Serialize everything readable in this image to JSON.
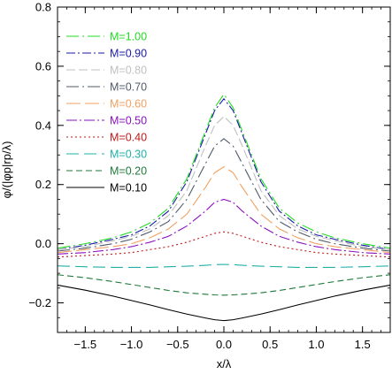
{
  "chart_data": {
    "type": "line",
    "xlabel": "x/λ",
    "ylabel": "φ/(|φp|rp/λ)",
    "xlim": [
      -1.8,
      1.8
    ],
    "ylim": [
      -0.3,
      0.8
    ],
    "xticks": [
      -1.5,
      -1.0,
      -0.5,
      0.0,
      0.5,
      1.0,
      1.5
    ],
    "xtick_labels": [
      "−1.5",
      "−1.0",
      "−0.5",
      "0.0",
      "0.5",
      "1.0",
      "1.5"
    ],
    "yticks": [
      -0.2,
      0.0,
      0.2,
      0.4,
      0.6,
      0.8
    ],
    "ytick_labels": [
      "−0.2",
      "0.0",
      "0.2",
      "0.4",
      "0.6",
      "0.8"
    ],
    "grid": false,
    "legend_position": "top-left",
    "series": [
      {
        "name": "M=1.00",
        "color": "#22dd22",
        "dash": "14,4,2,4",
        "x": [
          -1.8,
          -1.5,
          -1.2,
          -1.0,
          -0.8,
          -0.6,
          -0.4,
          -0.2,
          -0.1,
          0.0,
          0.1,
          0.2,
          0.4,
          0.6,
          0.8,
          1.0,
          1.2,
          1.5,
          1.8
        ],
        "y": [
          -0.015,
          0.0,
          0.02,
          0.04,
          0.07,
          0.12,
          0.22,
          0.38,
          0.46,
          0.505,
          0.46,
          0.38,
          0.22,
          0.12,
          0.07,
          0.04,
          0.02,
          0.0,
          -0.015
        ]
      },
      {
        "name": "M=0.90",
        "color": "#1a1aa8",
        "dash": "10,3,2,3",
        "x": [
          -1.8,
          -1.5,
          -1.2,
          -1.0,
          -0.8,
          -0.6,
          -0.4,
          -0.2,
          -0.1,
          0.0,
          0.1,
          0.2,
          0.4,
          0.6,
          0.8,
          1.0,
          1.2,
          1.5,
          1.8
        ],
        "y": [
          -0.02,
          -0.005,
          0.015,
          0.03,
          0.06,
          0.11,
          0.21,
          0.37,
          0.45,
          0.49,
          0.45,
          0.37,
          0.21,
          0.11,
          0.06,
          0.03,
          0.015,
          -0.005,
          -0.02
        ]
      },
      {
        "name": "M=0.80",
        "color": "#c0c0c0",
        "dash": "10,4",
        "x": [
          -1.8,
          -1.5,
          -1.2,
          -1.0,
          -0.8,
          -0.6,
          -0.4,
          -0.2,
          -0.1,
          0.0,
          0.1,
          0.2,
          0.4,
          0.6,
          0.8,
          1.0,
          1.2,
          1.5,
          1.8
        ],
        "y": [
          -0.02,
          -0.01,
          0.01,
          0.025,
          0.05,
          0.095,
          0.18,
          0.33,
          0.4,
          0.43,
          0.4,
          0.33,
          0.18,
          0.095,
          0.05,
          0.025,
          0.01,
          -0.01,
          -0.02
        ]
      },
      {
        "name": "M=0.70",
        "color": "#505a6a",
        "dash": "14,4,2,4",
        "x": [
          -1.8,
          -1.5,
          -1.2,
          -1.0,
          -0.8,
          -0.6,
          -0.4,
          -0.2,
          -0.1,
          0.0,
          0.1,
          0.2,
          0.4,
          0.6,
          0.8,
          1.0,
          1.2,
          1.5,
          1.8
        ],
        "y": [
          -0.025,
          -0.015,
          0.0,
          0.015,
          0.04,
          0.075,
          0.15,
          0.27,
          0.33,
          0.355,
          0.33,
          0.27,
          0.15,
          0.075,
          0.04,
          0.015,
          0.0,
          -0.015,
          -0.025
        ]
      },
      {
        "name": "M=0.60",
        "color": "#f0a060",
        "dash": "16,5",
        "x": [
          -1.8,
          -1.5,
          -1.2,
          -1.0,
          -0.8,
          -0.6,
          -0.4,
          -0.2,
          -0.1,
          0.0,
          0.1,
          0.2,
          0.4,
          0.6,
          0.8,
          1.0,
          1.2,
          1.5,
          1.8
        ],
        "y": [
          -0.03,
          -0.02,
          -0.01,
          0.0,
          0.02,
          0.05,
          0.1,
          0.19,
          0.24,
          0.26,
          0.24,
          0.19,
          0.1,
          0.05,
          0.02,
          0.0,
          -0.01,
          -0.02,
          -0.03
        ]
      },
      {
        "name": "M=0.50",
        "color": "#8a10c0",
        "dash": "12,3,2,3",
        "x": [
          -1.8,
          -1.5,
          -1.2,
          -1.0,
          -0.8,
          -0.6,
          -0.4,
          -0.2,
          -0.1,
          0.0,
          0.1,
          0.2,
          0.4,
          0.6,
          0.8,
          1.0,
          1.2,
          1.5,
          1.8
        ],
        "y": [
          -0.035,
          -0.03,
          -0.02,
          -0.01,
          0.005,
          0.025,
          0.06,
          0.11,
          0.14,
          0.15,
          0.14,
          0.11,
          0.06,
          0.025,
          0.005,
          -0.01,
          -0.02,
          -0.03,
          -0.035
        ]
      },
      {
        "name": "M=0.40",
        "color": "#c01818",
        "dash": "2,3",
        "x": [
          -1.8,
          -1.5,
          -1.2,
          -1.0,
          -0.8,
          -0.6,
          -0.4,
          -0.2,
          -0.1,
          0.0,
          0.1,
          0.2,
          0.4,
          0.6,
          0.8,
          1.0,
          1.2,
          1.5,
          1.8
        ],
        "y": [
          -0.045,
          -0.04,
          -0.035,
          -0.03,
          -0.02,
          -0.01,
          0.005,
          0.025,
          0.035,
          0.04,
          0.035,
          0.025,
          0.005,
          -0.01,
          -0.02,
          -0.03,
          -0.035,
          -0.04,
          -0.045
        ]
      },
      {
        "name": "M=0.30",
        "color": "#20b0a8",
        "dash": "14,6",
        "x": [
          -1.8,
          -1.5,
          -1.2,
          -1.0,
          -0.8,
          -0.6,
          -0.4,
          -0.2,
          -0.1,
          0.0,
          0.1,
          0.2,
          0.4,
          0.6,
          0.8,
          1.0,
          1.2,
          1.5,
          1.8
        ],
        "y": [
          -0.075,
          -0.078,
          -0.08,
          -0.08,
          -0.08,
          -0.078,
          -0.076,
          -0.073,
          -0.071,
          -0.07,
          -0.071,
          -0.073,
          -0.076,
          -0.078,
          -0.08,
          -0.08,
          -0.08,
          -0.078,
          -0.075
        ]
      },
      {
        "name": "M=0.20",
        "color": "#1f7a3a",
        "dash": "7,4",
        "x": [
          -1.8,
          -1.5,
          -1.2,
          -1.0,
          -0.8,
          -0.6,
          -0.4,
          -0.2,
          -0.1,
          0.0,
          0.1,
          0.2,
          0.4,
          0.6,
          0.8,
          1.0,
          1.2,
          1.5,
          1.8
        ],
        "y": [
          -0.105,
          -0.115,
          -0.128,
          -0.138,
          -0.148,
          -0.158,
          -0.166,
          -0.171,
          -0.173,
          -0.174,
          -0.173,
          -0.171,
          -0.166,
          -0.158,
          -0.148,
          -0.138,
          -0.128,
          -0.115,
          -0.105
        ]
      },
      {
        "name": "M=0.10",
        "color": "#000000",
        "dash": "",
        "x": [
          -1.8,
          -1.5,
          -1.2,
          -1.0,
          -0.8,
          -0.6,
          -0.4,
          -0.2,
          -0.1,
          0.0,
          0.1,
          0.2,
          0.4,
          0.6,
          0.8,
          1.0,
          1.2,
          1.5,
          1.8
        ],
        "y": [
          -0.14,
          -0.157,
          -0.177,
          -0.192,
          -0.207,
          -0.223,
          -0.238,
          -0.251,
          -0.257,
          -0.26,
          -0.257,
          -0.251,
          -0.238,
          -0.223,
          -0.207,
          -0.192,
          -0.177,
          -0.157,
          -0.14
        ]
      }
    ]
  }
}
